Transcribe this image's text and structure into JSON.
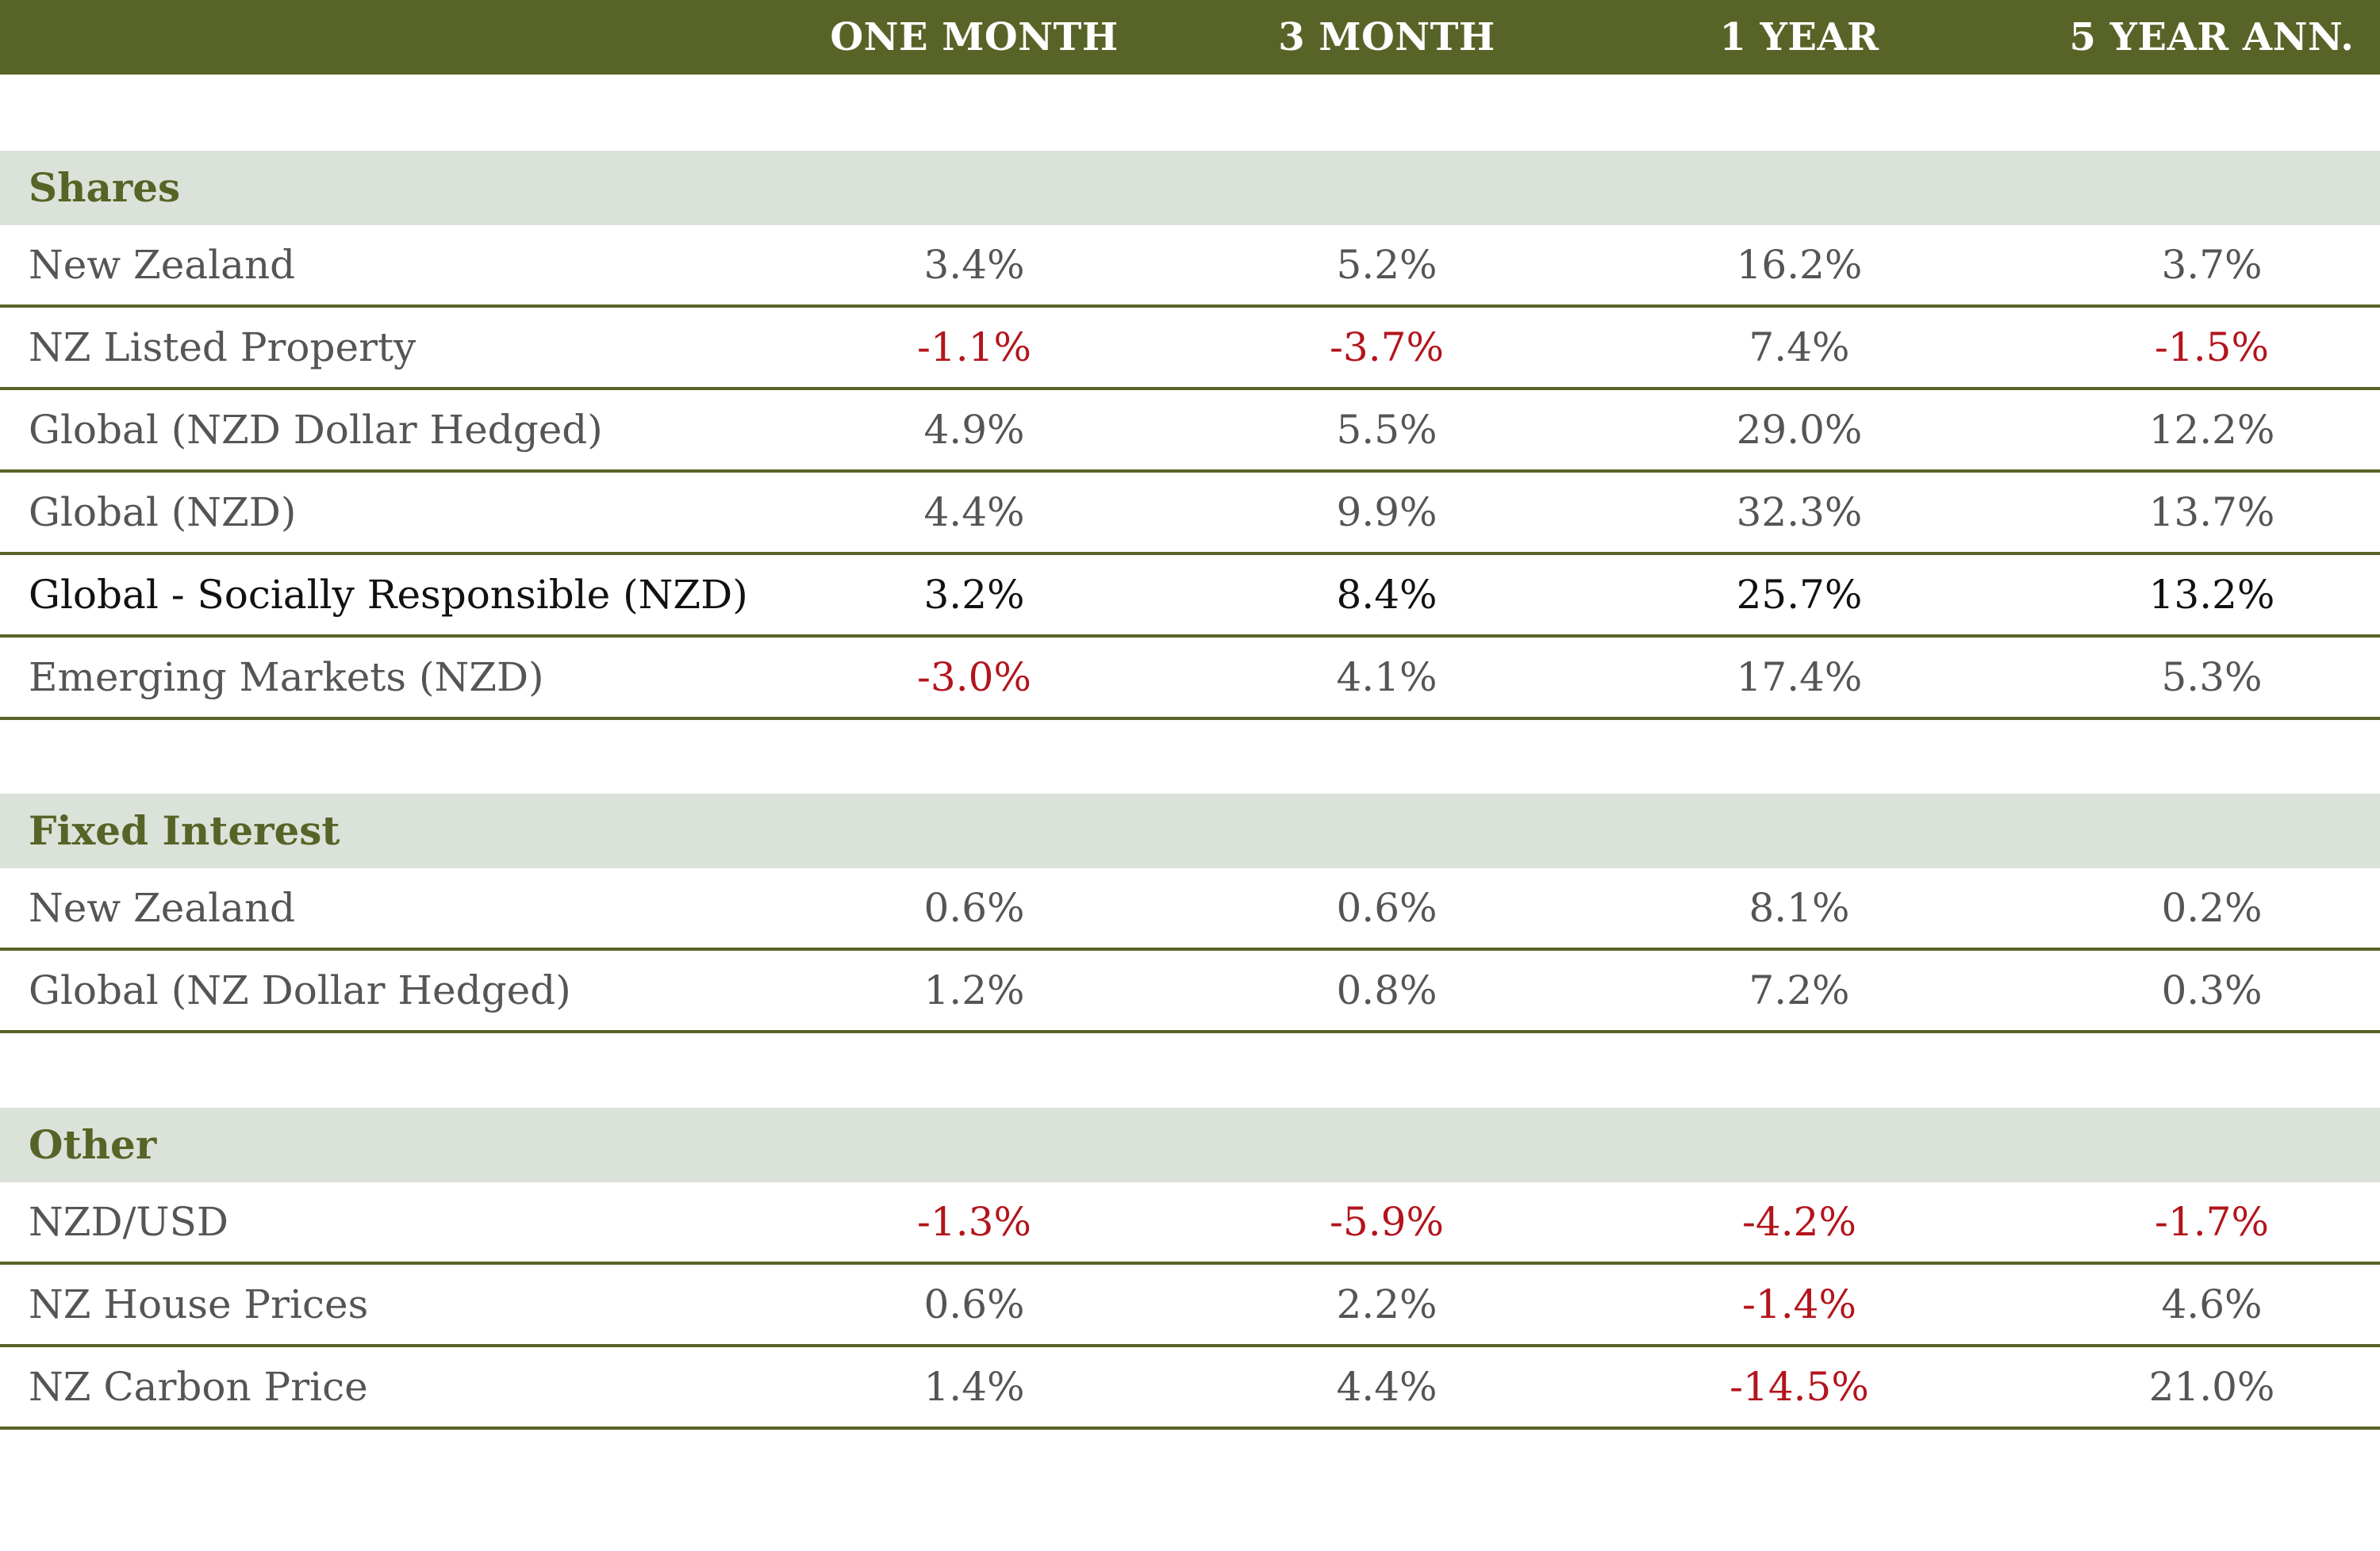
{
  "header": {
    "col1": "ONE MONTH",
    "col2": "3 MONTH",
    "col3": "1 YEAR",
    "col4": "5 YEAR ANN."
  },
  "sections": [
    {
      "title": "Shares",
      "rows": [
        {
          "label": "New Zealand",
          "values": [
            "3.4%",
            "5.2%",
            "16.2%",
            "3.7%"
          ]
        },
        {
          "label": "NZ Listed Property",
          "values": [
            "-1.1%",
            "-3.7%",
            "7.4%",
            "-1.5%"
          ]
        },
        {
          "label": "Global (NZD Dollar Hedged)",
          "values": [
            "4.9%",
            "5.5%",
            "29.0%",
            "12.2%"
          ]
        },
        {
          "label": "Global (NZD)",
          "values": [
            "4.4%",
            "9.9%",
            "32.3%",
            "13.7%"
          ]
        },
        {
          "label": "Global  - Socially Responsible (NZD)",
          "values": [
            "3.2%",
            "8.4%",
            "25.7%",
            "13.2%"
          ]
        },
        {
          "label": "Emerging Markets (NZD)",
          "values": [
            "-3.0%",
            "4.1%",
            "17.4%",
            "5.3%"
          ]
        }
      ]
    },
    {
      "title": "Fixed Interest",
      "rows": [
        {
          "label": "New Zealand",
          "values": [
            "0.6%",
            "0.6%",
            "8.1%",
            "0.2%"
          ]
        },
        {
          "label": "Global (NZ Dollar Hedged)",
          "values": [
            "1.2%",
            "0.8%",
            "7.2%",
            "0.3%"
          ]
        }
      ]
    },
    {
      "title": "Other",
      "rows": [
        {
          "label": "NZD/USD",
          "values": [
            "-1.3%",
            "-5.9%",
            "-4.2%",
            "-1.7%"
          ]
        },
        {
          "label": "NZ House Prices",
          "values": [
            "0.6%",
            "2.2%",
            "-1.4%",
            "4.6%"
          ]
        },
        {
          "label": "NZ Carbon Price",
          "values": [
            "1.4%",
            "4.4%",
            "-14.5%",
            "21.0%"
          ]
        }
      ]
    }
  ],
  "colors": {
    "header_bg": "#586427",
    "section_bg": "#dbe2d9",
    "negative": "#b3141b",
    "text": "#555555"
  }
}
